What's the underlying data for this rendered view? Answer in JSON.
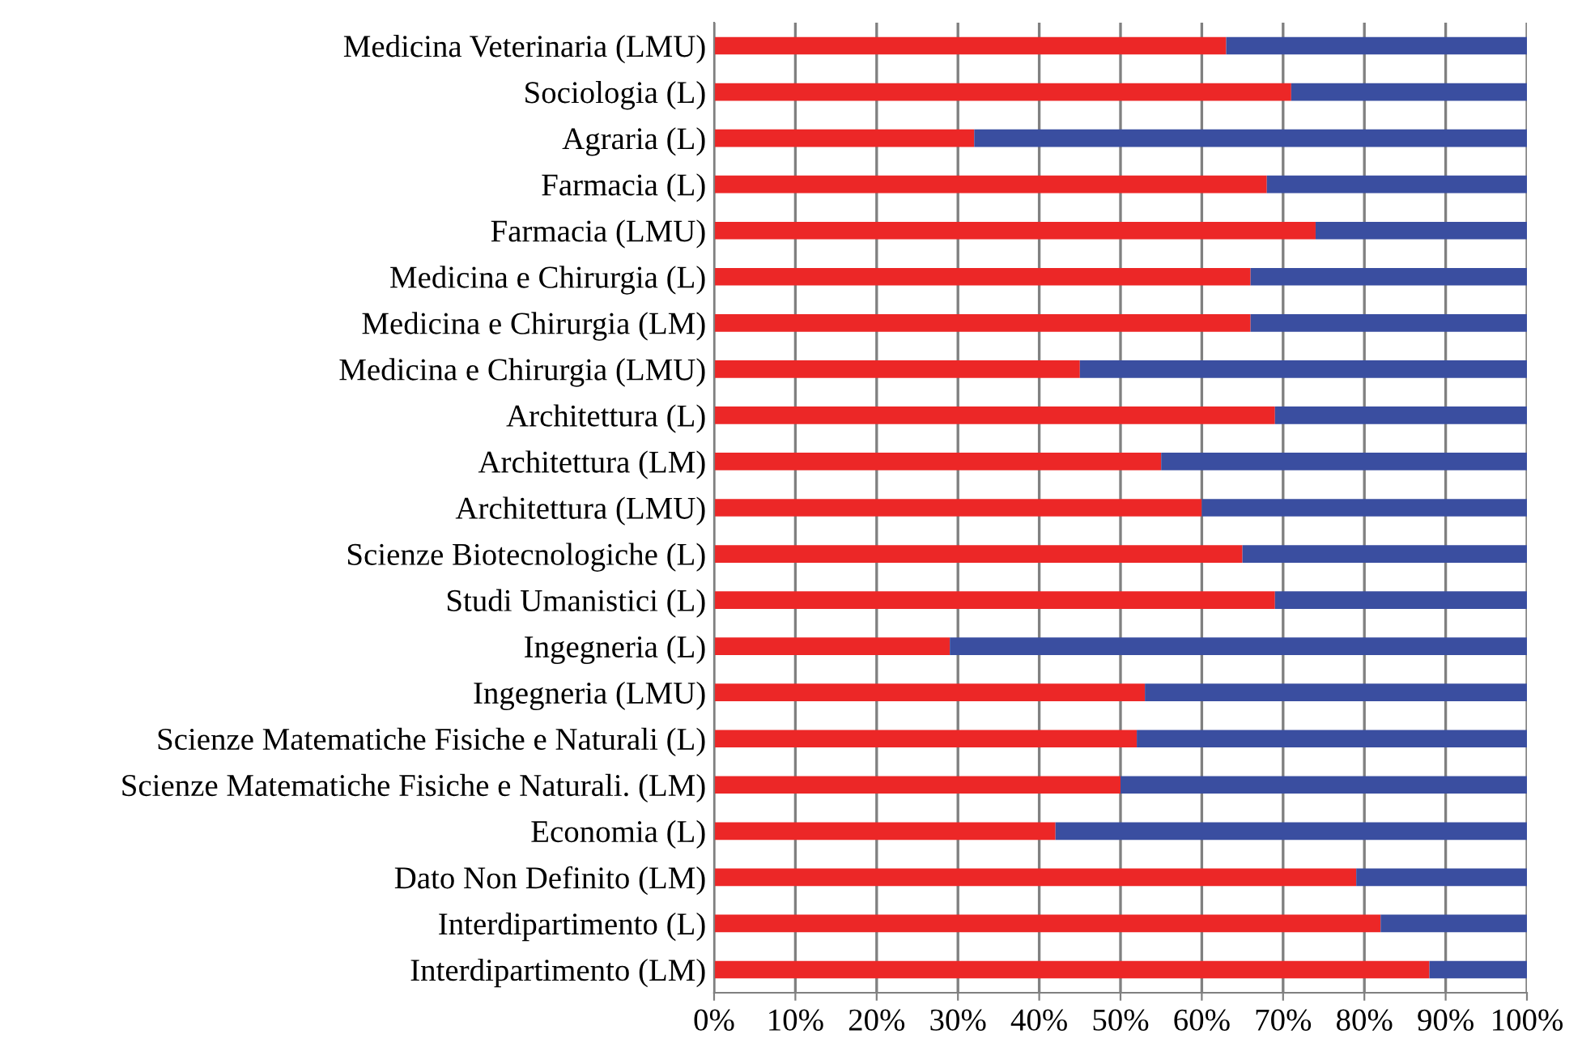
{
  "chart_data": {
    "type": "bar",
    "orientation": "horizontal",
    "stacked": true,
    "categories": [
      "Medicina Veterinaria (LMU)",
      "Sociologia (L)",
      "Agraria (L)",
      "Farmacia (L)",
      "Farmacia (LMU)",
      "Medicina e Chirurgia (L)",
      "Medicina e Chirurgia (LM)",
      "Medicina e Chirurgia (LMU)",
      "Architettura (L)",
      "Architettura (LM)",
      "Architettura (LMU)",
      "Scienze Biotecnologiche (L)",
      "Studi Umanistici (L)",
      "Ingegneria (L)",
      "Ingegneria (LMU)",
      "Scienze Matematiche Fisiche e Naturali (L)",
      "Scienze Matematiche Fisiche e Naturali. (LM)",
      "Economia (L)",
      "Dato Non Definito (LM)",
      "Interdipartimento (L)",
      "Interdipartimento (LM)"
    ],
    "series": [
      {
        "color": "#ec2727",
        "values": [
          63,
          71,
          32,
          68,
          74,
          66,
          66,
          45,
          69,
          55,
          60,
          65,
          69,
          29,
          53,
          52,
          50,
          42,
          79,
          82,
          88
        ]
      },
      {
        "color": "#3a4ea0",
        "values": [
          37,
          29,
          68,
          32,
          26,
          34,
          34,
          55,
          31,
          45,
          40,
          35,
          31,
          71,
          47,
          48,
          50,
          58,
          21,
          18,
          12
        ]
      }
    ],
    "xlim": [
      0,
      100
    ],
    "xticks": [
      {
        "value": 0,
        "label": "0%"
      },
      {
        "value": 10,
        "label": "10%"
      },
      {
        "value": 20,
        "label": "20%"
      },
      {
        "value": 30,
        "label": "30%"
      },
      {
        "value": 40,
        "label": "40%"
      },
      {
        "value": 50,
        "label": "50%"
      },
      {
        "value": 60,
        "label": "60%"
      },
      {
        "value": 70,
        "label": "70%"
      },
      {
        "value": 80,
        "label": "80%"
      },
      {
        "value": 90,
        "label": "90%"
      },
      {
        "value": 100,
        "label": "100%"
      }
    ],
    "grid": "x",
    "legend": false
  }
}
